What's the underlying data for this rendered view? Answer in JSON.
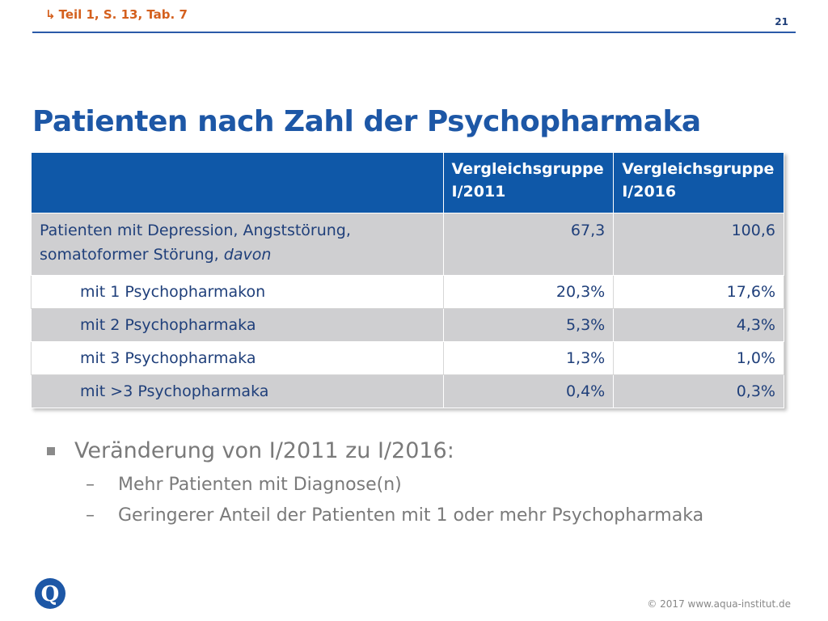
{
  "header": {
    "reference": "Teil 1, S. 13, Tab. 7",
    "page_number": "21"
  },
  "title": "Patienten nach Zahl der Psychopharmaka",
  "table": {
    "columns": [
      "",
      "Vergleichsgruppe I/2011",
      "Vergleichsgruppe I/2016"
    ],
    "main_row": {
      "label": "Patienten mit Depression, Angststörung, somatoformer Störung,",
      "label_italic": "davon",
      "v2011": "67,3",
      "v2016": "100,6"
    },
    "rows": [
      {
        "label": "mit 1 Psychopharmakon",
        "v2011": "20,3%",
        "v2016": "17,6%"
      },
      {
        "label": "mit 2 Psychopharmaka",
        "v2011": "5,3%",
        "v2016": "4,3%"
      },
      {
        "label": "mit 3 Psychopharmaka",
        "v2011": "1,3%",
        "v2016": "1,0%"
      },
      {
        "label": "mit >3 Psychopharmaka",
        "v2011": "0,4%",
        "v2016": "0,3%"
      }
    ]
  },
  "bullets": {
    "main": "Veränderung von I/2011 zu I/2016:",
    "sub": [
      "Mehr Patienten mit Diagnose(n)",
      "Geringerer Anteil der Patienten mit 1 oder mehr Psychopharmaka"
    ]
  },
  "logo": {
    "letter": "Q"
  },
  "footer": {
    "copyright": "© 2017 www.aqua-institut.de"
  },
  "colors": {
    "accent_orange": "#d4601e",
    "title_blue": "#1d57a6",
    "header_blue": "#0f58a8",
    "row_gray": "#cfcfd1"
  }
}
